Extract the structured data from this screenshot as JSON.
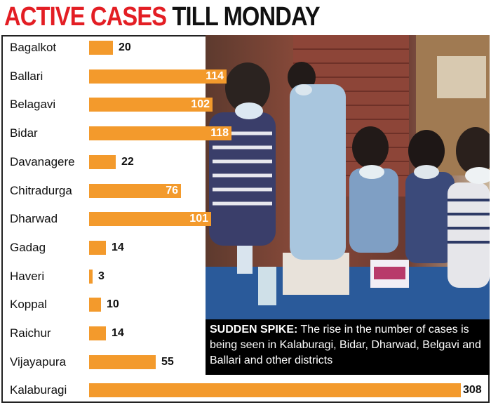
{
  "header": {
    "title_part1": "ACTIVE CASES",
    "title_part2": "TILL MONDAY"
  },
  "caption": {
    "lead": "SUDDEN SPIKE:",
    "text": "The rise in the number of cases is being seen in Kalaburagi, Bidar, Dharwad, Belgavi and Ballari and other districts"
  },
  "chart_data": {
    "type": "bar",
    "orientation": "horizontal",
    "categories": [
      "Bagalkot",
      "Ballari",
      "Belagavi",
      "Bidar",
      "Davanagere",
      "Chitradurga",
      "Dharwad",
      "Gadag",
      "Haveri",
      "Koppal",
      "Raichur",
      "Vijayapura",
      "Kalaburagi"
    ],
    "values": [
      20,
      114,
      102,
      118,
      22,
      76,
      101,
      14,
      3,
      10,
      14,
      55,
      308
    ],
    "title": "ACTIVE CASES TILL MONDAY",
    "xlabel": "",
    "ylabel": "",
    "xlim": [
      0,
      308
    ],
    "grid": false,
    "bar_color": "#f39a2c"
  },
  "colors": {
    "accent": "#e31e24",
    "bar": "#f39a2c",
    "caption_bg": "#000000"
  }
}
